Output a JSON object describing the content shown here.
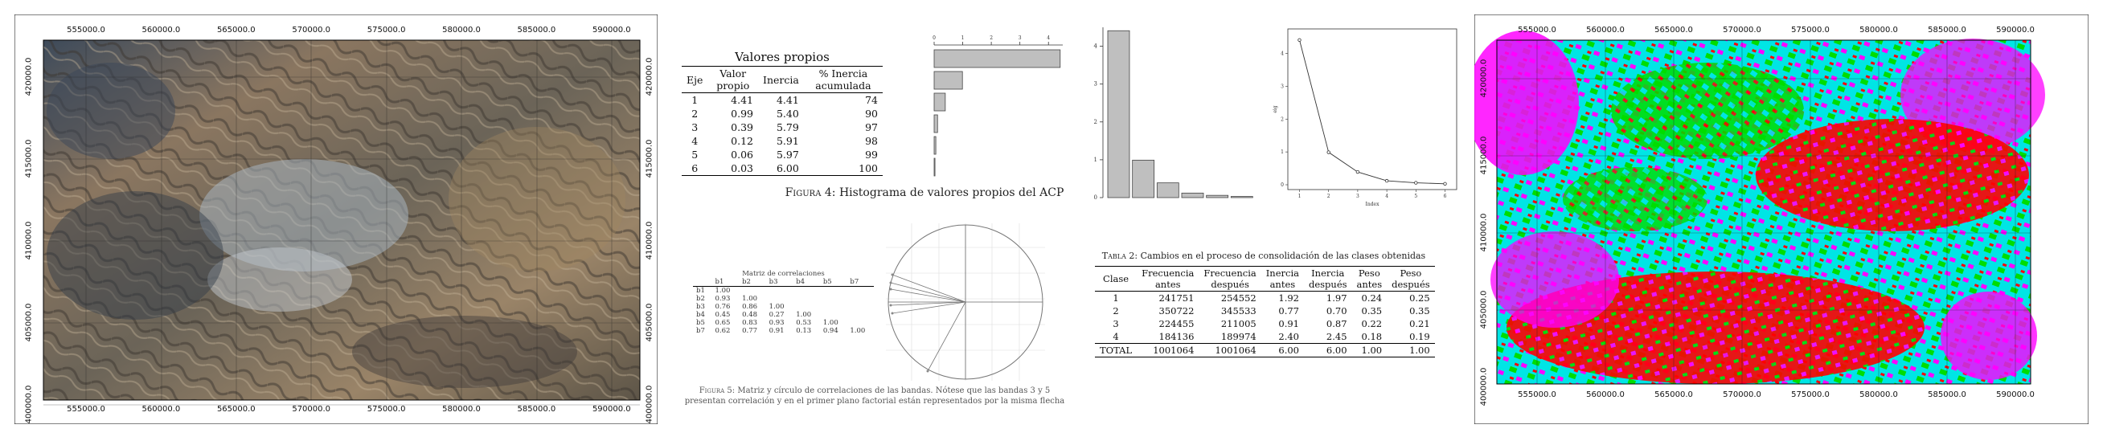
{
  "left_map": {
    "x_ticks": [
      "555000.0",
      "560000.0",
      "565000.0",
      "570000.0",
      "575000.0",
      "580000.0",
      "585000.0",
      "590000.0"
    ],
    "y_ticks": [
      "420000.0",
      "415000.0",
      "410000.0",
      "405000.0",
      "400000.0"
    ]
  },
  "eigen_table": {
    "title": "Valores propios",
    "headers": [
      "Eje",
      "Valor propio",
      "Inercia",
      "% Inercia acumulada"
    ],
    "rows": [
      [
        "1",
        "4.41",
        "4.41",
        "74"
      ],
      [
        "2",
        "0.99",
        "5.40",
        "90"
      ],
      [
        "3",
        "0.39",
        "5.79",
        "97"
      ],
      [
        "4",
        "0.12",
        "5.91",
        "98"
      ],
      [
        "5",
        "0.06",
        "5.97",
        "99"
      ],
      [
        "6",
        "0.03",
        "6.00",
        "100"
      ]
    ]
  },
  "fig4_caption": {
    "label": "Figura 4:",
    "text": "Histograma de valores propios del ACP"
  },
  "corr_matrix": {
    "title": "Matriz de correlaciones",
    "headers": [
      "",
      "b1",
      "b2",
      "b3",
      "b4",
      "b5",
      "b7"
    ],
    "rows": [
      [
        "b1",
        "1.00",
        "",
        "",
        "",
        "",
        ""
      ],
      [
        "b2",
        "0.93",
        "1.00",
        "",
        "",
        "",
        ""
      ],
      [
        "b3",
        "0.76",
        "0.86",
        "1.00",
        "",
        "",
        ""
      ],
      [
        "b4",
        "0.45",
        "0.48",
        "0.27",
        "1.00",
        "",
        ""
      ],
      [
        "b5",
        "0.65",
        "0.83",
        "0.93",
        "0.53",
        "1.00",
        ""
      ],
      [
        "b7",
        "0.62",
        "0.77",
        "0.91",
        "0.13",
        "0.94",
        "1.00"
      ]
    ]
  },
  "fig5_caption": {
    "label": "Figura 5:",
    "text": "Matriz y círculo de correlaciones de las bandas. Nótese que las bandas 3 y 5 presentan correlación y en el primer plano factorial están representados por la misma flecha"
  },
  "table2": {
    "caption_label": "Tabla 2:",
    "caption_text": "Cambios en el proceso de consolidación de las clases obtenidas",
    "headers": [
      "Clase",
      "Frecuencia antes",
      "Frecuencia después",
      "Inercia antes",
      "Inercia después",
      "Peso antes",
      "Peso después"
    ],
    "rows": [
      [
        "1",
        "241751",
        "254552",
        "1.92",
        "1.97",
        "0.24",
        "0.25"
      ],
      [
        "2",
        "350722",
        "345533",
        "0.77",
        "0.70",
        "0.35",
        "0.35"
      ],
      [
        "3",
        "224455",
        "211005",
        "0.91",
        "0.87",
        "0.22",
        "0.21"
      ],
      [
        "4",
        "184136",
        "189974",
        "2.40",
        "2.45",
        "0.18",
        "0.19"
      ],
      [
        "TOTAL",
        "1001064",
        "1001064",
        "6.00",
        "6.00",
        "1.00",
        "1.00"
      ]
    ]
  },
  "right_map": {
    "x_ticks": [
      "555000.0",
      "560000.0",
      "565000.0",
      "570000.0",
      "575000.0",
      "580000.0",
      "585000.0",
      "590000.0"
    ],
    "y_ticks": [
      "420000.0",
      "415000.0",
      "410000.0",
      "405000.0",
      "400000.0"
    ]
  },
  "chart_data": [
    {
      "type": "bar",
      "orientation": "horizontal",
      "categories": [
        "1",
        "2",
        "3",
        "4",
        "5",
        "6"
      ],
      "values": [
        4.41,
        0.99,
        0.39,
        0.12,
        0.06,
        0.03
      ],
      "x_ticks": [
        "0",
        "1",
        "2",
        "3",
        "4"
      ],
      "xlim": [
        0,
        4.5
      ]
    },
    {
      "type": "bar",
      "categories": [
        "1",
        "2",
        "3",
        "4",
        "5",
        "6"
      ],
      "values": [
        4.41,
        0.99,
        0.39,
        0.12,
        0.06,
        0.03
      ],
      "y_ticks": [
        "0",
        "1",
        "2",
        "3",
        "4"
      ],
      "ylim": [
        0,
        4.5
      ]
    },
    {
      "type": "line",
      "x": [
        1,
        2,
        3,
        4,
        5,
        6
      ],
      "y": [
        4.41,
        0.99,
        0.39,
        0.12,
        0.06,
        0.03
      ],
      "x_ticks": [
        "1",
        "2",
        "3",
        "4",
        "5",
        "6"
      ],
      "y_ticks": [
        "0",
        "1",
        "2",
        "3",
        "4"
      ],
      "xlabel": "Index",
      "ylabel": "eig",
      "ylim": [
        0,
        4.6
      ]
    }
  ]
}
